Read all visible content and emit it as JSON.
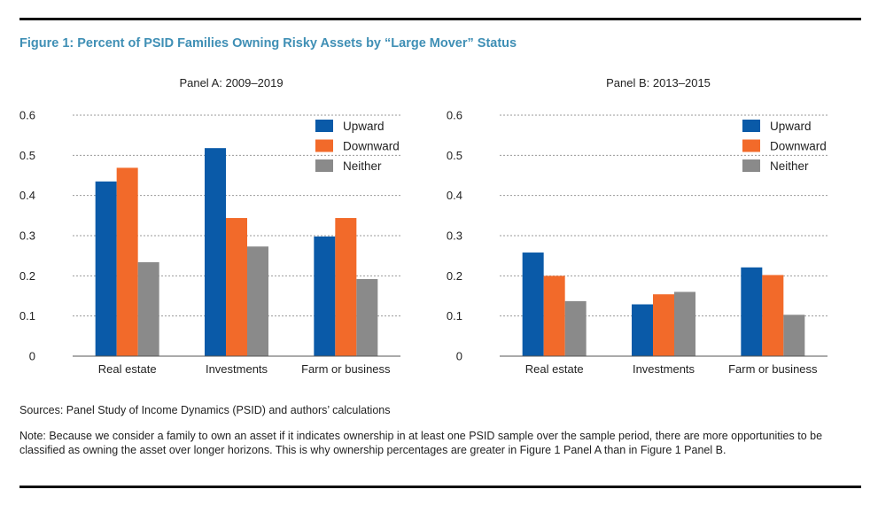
{
  "figure_title": "Figure 1: Percent of PSID Families Owning Risky Assets by “Large Mover” Status",
  "sources": "Sources: Panel Study of Income Dynamics (PSID) and authors’ calculations",
  "note": "Note: Because we consider a family to own an asset if it indicates ownership in at least one PSID sample over the sample period, there are more opportunities to be classified as owning the asset over longer horizons. This is why ownership percentages are greater in Figure 1 Panel A than in Figure 1 Panel B.",
  "colors": {
    "Upward": "#0a5aa8",
    "Downward": "#f26a2a",
    "Neither": "#8a8a8a"
  },
  "chart_data": [
    {
      "type": "bar",
      "title": "Panel A: 2009–2019",
      "categories": [
        "Real estate",
        "Investments",
        "Farm or business"
      ],
      "series": [
        {
          "name": "Upward",
          "values": [
            0.435,
            0.518,
            0.298
          ]
        },
        {
          "name": "Downward",
          "values": [
            0.469,
            0.344,
            0.344
          ]
        },
        {
          "name": "Neither",
          "values": [
            0.234,
            0.273,
            0.192
          ]
        }
      ],
      "ylim": [
        0,
        0.6
      ],
      "yticks": [
        "0",
        "0.1",
        "0.2",
        "0.3",
        "0.4",
        "0.5",
        "0.6"
      ],
      "grid": true,
      "legend": "top-right"
    },
    {
      "type": "bar",
      "title": "Panel B: 2013–2015",
      "categories": [
        "Real estate",
        "Investments",
        "Farm or business"
      ],
      "series": [
        {
          "name": "Upward",
          "values": [
            0.258,
            0.129,
            0.221
          ]
        },
        {
          "name": "Downward",
          "values": [
            0.2,
            0.154,
            0.202
          ]
        },
        {
          "name": "Neither",
          "values": [
            0.137,
            0.16,
            0.103
          ]
        }
      ],
      "ylim": [
        0,
        0.6
      ],
      "yticks": [
        "0",
        "0.1",
        "0.2",
        "0.3",
        "0.4",
        "0.5",
        "0.6"
      ],
      "grid": true,
      "legend": "top-right"
    }
  ]
}
